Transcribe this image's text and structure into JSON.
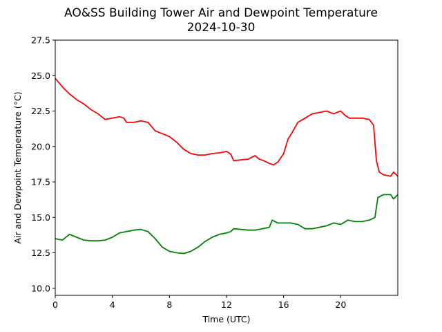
{
  "chart_data": {
    "type": "line",
    "title": "AO&SS Building Tower Air and Dewpoint Temperature",
    "subtitle": "2024-10-30",
    "xlabel": "Time (UTC)",
    "ylabel": "Air and Dewpoint Temperature (°C)",
    "xlim": [
      0,
      24
    ],
    "ylim": [
      9.5,
      27.5
    ],
    "xticks": [
      0,
      4,
      8,
      12,
      16,
      20
    ],
    "yticks": [
      10.0,
      12.5,
      15.0,
      17.5,
      20.0,
      22.5,
      25.0,
      27.5
    ],
    "grid": false,
    "legend": "none",
    "series": [
      {
        "color": "#ff0000",
        "x": [
          0,
          0.5,
          1,
          1.5,
          2,
          2.5,
          3,
          3.5,
          4,
          4.5,
          4.8,
          5,
          5.5,
          6,
          6.5,
          7,
          7.5,
          8,
          8.5,
          9,
          9.5,
          10,
          10.5,
          11,
          11.5,
          12,
          12.3,
          12.5,
          13,
          13.5,
          14,
          14.3,
          14.6,
          15,
          15.3,
          15.6,
          16,
          16.3,
          16.6,
          17,
          17.5,
          18,
          18.5,
          19,
          19.5,
          20,
          20.3,
          20.6,
          21,
          21.5,
          22,
          22.3,
          22.5,
          22.7,
          23,
          23.5,
          23.7,
          24
        ],
        "y": [
          24.8,
          24.2,
          23.7,
          23.3,
          23.0,
          22.6,
          22.3,
          21.9,
          22.0,
          22.1,
          22.0,
          21.7,
          21.7,
          21.8,
          21.7,
          21.1,
          20.9,
          20.7,
          20.3,
          19.8,
          19.5,
          19.4,
          19.4,
          19.5,
          19.55,
          19.65,
          19.45,
          19.0,
          19.05,
          19.1,
          19.35,
          19.1,
          19.0,
          18.8,
          18.7,
          18.9,
          19.5,
          20.5,
          21.0,
          21.7,
          22.0,
          22.3,
          22.4,
          22.5,
          22.3,
          22.5,
          22.2,
          22.0,
          22.0,
          22.0,
          21.9,
          21.5,
          19.0,
          18.2,
          18.0,
          17.9,
          18.2,
          17.9
        ]
      },
      {
        "color": "#008000",
        "x": [
          0,
          0.5,
          1,
          1.5,
          2,
          2.5,
          3,
          3.5,
          4,
          4.5,
          5,
          5.5,
          6,
          6.5,
          7,
          7.5,
          8,
          8.5,
          9,
          9.5,
          10,
          10.5,
          11,
          11.5,
          12,
          12.3,
          12.5,
          13,
          13.5,
          14,
          14.5,
          15,
          15.2,
          15.6,
          16,
          16.5,
          17,
          17.5,
          18,
          18.5,
          19,
          19.5,
          20,
          20.5,
          21,
          21.5,
          22,
          22.4,
          22.6,
          23,
          23.5,
          23.7,
          24
        ],
        "y": [
          13.5,
          13.4,
          13.8,
          13.6,
          13.4,
          13.35,
          13.35,
          13.4,
          13.6,
          13.9,
          14.0,
          14.1,
          14.15,
          14.0,
          13.5,
          12.9,
          12.6,
          12.5,
          12.45,
          12.6,
          12.9,
          13.3,
          13.6,
          13.8,
          13.9,
          14.0,
          14.2,
          14.15,
          14.1,
          14.1,
          14.2,
          14.3,
          14.8,
          14.6,
          14.6,
          14.6,
          14.5,
          14.2,
          14.2,
          14.3,
          14.4,
          14.6,
          14.5,
          14.8,
          14.7,
          14.7,
          14.8,
          15.0,
          16.4,
          16.6,
          16.6,
          16.3,
          16.6
        ]
      }
    ]
  }
}
